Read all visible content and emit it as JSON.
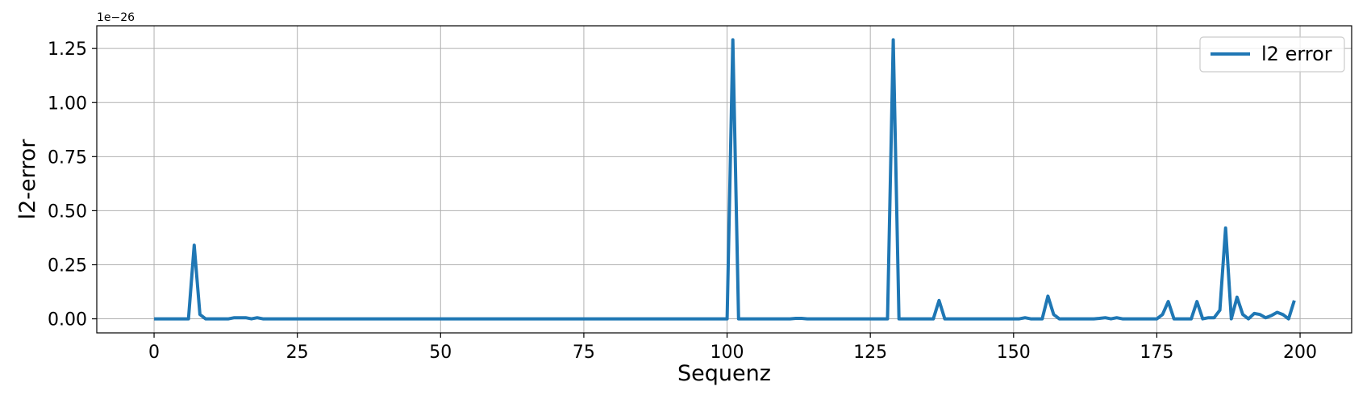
{
  "chart_data": {
    "type": "line",
    "xlabel": "Sequenz",
    "ylabel": "l2-error",
    "y_offset_label": "1e−26",
    "xlim": [
      -10,
      209
    ],
    "ylim": [
      -0.065,
      1.355
    ],
    "x_ticks": [
      0,
      25,
      50,
      75,
      100,
      125,
      150,
      175,
      200
    ],
    "x_tick_labels": [
      "0",
      "25",
      "50",
      "75",
      "100",
      "125",
      "150",
      "175",
      "200"
    ],
    "y_ticks": [
      0.0,
      0.25,
      0.5,
      0.75,
      1.0,
      1.25
    ],
    "y_tick_labels": [
      "0.00",
      "0.25",
      "0.50",
      "0.75",
      "1.00",
      "1.25"
    ],
    "grid": true,
    "legend_position": "top-right",
    "series": [
      {
        "name": "l2 error",
        "color": "#1f77b4",
        "x": [
          0,
          6,
          7,
          8,
          9,
          10,
          11,
          12,
          13,
          14,
          15,
          16,
          17,
          18,
          19,
          20,
          100,
          101,
          102,
          111,
          112,
          113,
          114,
          128,
          129,
          130,
          136,
          137,
          138,
          151,
          152,
          153,
          154,
          155,
          156,
          157,
          158,
          159,
          164,
          165,
          166,
          167,
          168,
          169,
          170,
          175,
          176,
          177,
          178,
          179,
          180,
          181,
          182,
          183,
          184,
          185,
          186,
          187,
          188,
          189,
          190,
          191,
          192,
          193,
          194,
          195,
          196,
          197,
          198,
          199
        ],
        "y": [
          0,
          0,
          0.34,
          0.02,
          0,
          0,
          0,
          0,
          0,
          0.005,
          0.005,
          0.005,
          0,
          0.005,
          0,
          0,
          0,
          1.29,
          0,
          0,
          0.002,
          0.002,
          0,
          0,
          1.29,
          0,
          0,
          0.085,
          0,
          0,
          0.005,
          0,
          0,
          0,
          0.105,
          0.02,
          0,
          0,
          0,
          0.002,
          0.005,
          0,
          0.005,
          0,
          0,
          0,
          0.02,
          0.08,
          0,
          0,
          0,
          0,
          0.08,
          0,
          0.005,
          0.005,
          0.04,
          0.42,
          0,
          0.1,
          0.02,
          0,
          0.025,
          0.02,
          0.005,
          0.015,
          0.03,
          0.02,
          0,
          0.085
        ]
      }
    ]
  }
}
